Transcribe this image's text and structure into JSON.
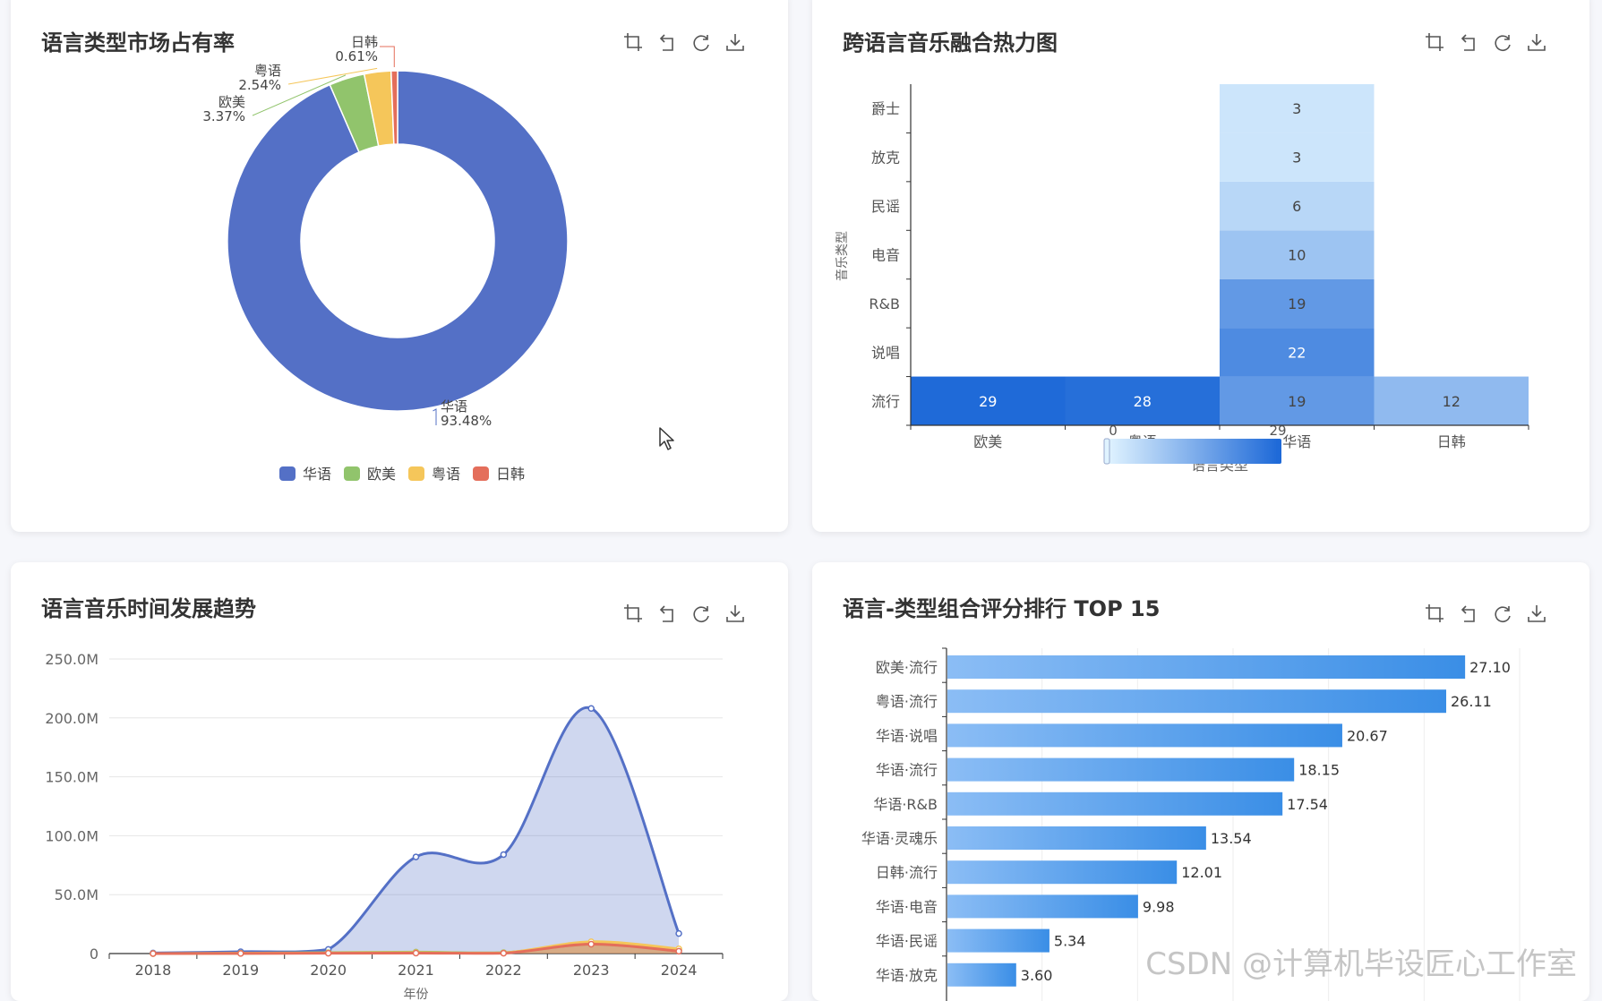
{
  "colors": {
    "zh": "#5470c6",
    "en": "#91c46c",
    "yue": "#f5c65a",
    "jk": "#e46e5b",
    "heat_low": "#e0f3ff",
    "heat_high": "#1f6ad8",
    "bar": "#3a8ee6"
  },
  "toolbox_icons": [
    "crop-icon",
    "undo-icon",
    "refresh-icon",
    "download-icon"
  ],
  "pie": {
    "title": "语言类型市场占有率",
    "chart_data": {
      "type": "pie",
      "donut": true,
      "slices": [
        {
          "name": "华语",
          "value": 93.48,
          "label": "93.48%"
        },
        {
          "name": "欧美",
          "value": 3.37,
          "label": "3.37%"
        },
        {
          "name": "粤语",
          "value": 2.54,
          "label": "2.54%"
        },
        {
          "name": "日韩",
          "value": 0.61,
          "label": "0.61%"
        }
      ],
      "legend": [
        "华语",
        "欧美",
        "粤语",
        "日韩"
      ],
      "legend_position": "bottom-center"
    }
  },
  "heatmap": {
    "title": "跨语言音乐融合热力图",
    "chart_data": {
      "type": "heatmap",
      "xlabel": "语言类型",
      "ylabel": "音乐类型",
      "x": [
        "欧美",
        "粤语",
        "华语",
        "日韩"
      ],
      "y": [
        "流行",
        "说唱",
        "R&B",
        "电音",
        "民谣",
        "放克",
        "爵士"
      ],
      "cells": [
        {
          "x": "欧美",
          "y": "流行",
          "v": 29
        },
        {
          "x": "粤语",
          "y": "流行",
          "v": 28
        },
        {
          "x": "华语",
          "y": "流行",
          "v": 19
        },
        {
          "x": "日韩",
          "y": "流行",
          "v": 12
        },
        {
          "x": "华语",
          "y": "说唱",
          "v": 22
        },
        {
          "x": "华语",
          "y": "R&B",
          "v": 19
        },
        {
          "x": "华语",
          "y": "电音",
          "v": 10
        },
        {
          "x": "华语",
          "y": "民谣",
          "v": 6
        },
        {
          "x": "华语",
          "y": "放克",
          "v": 3
        },
        {
          "x": "华语",
          "y": "爵士",
          "v": 3
        }
      ],
      "visual_map": {
        "min": 0,
        "max": 29,
        "min_label": "0",
        "max_label": "29"
      }
    }
  },
  "line": {
    "title": "语言音乐时间发展趋势",
    "chart_data": {
      "type": "area",
      "x": [
        "2018",
        "2019",
        "2020",
        "2021",
        "2022",
        "2023",
        "2024"
      ],
      "xlabel": "年份",
      "ylim": [
        0,
        250
      ],
      "yticks": [
        "0",
        "50.0M",
        "100.0M",
        "150.0M",
        "200.0M",
        "250.0M"
      ],
      "series": [
        {
          "key": "zh",
          "values": [
            0.5,
            1.5,
            3.5,
            82,
            84,
            208,
            17
          ]
        },
        {
          "key": "en",
          "values": [
            0,
            0.3,
            0.8,
            1.2,
            0.8,
            8,
            3
          ]
        },
        {
          "key": "yue",
          "values": [
            0,
            0.2,
            0.5,
            0.8,
            0.5,
            10,
            4
          ]
        },
        {
          "key": "jk",
          "values": [
            0,
            0.1,
            0.3,
            0.4,
            0.3,
            8,
            2
          ]
        }
      ]
    }
  },
  "bars": {
    "title": "语言-类型组合评分排行 TOP 15",
    "chart_data": {
      "type": "bar",
      "orientation": "horizontal",
      "xlim": [
        0,
        30
      ],
      "categories": [
        "欧美·流行",
        "粤语·流行",
        "华语·说唱",
        "华语·流行",
        "华语·R&B",
        "华语·灵魂乐",
        "日韩·流行",
        "华语·电音",
        "华语·民谣",
        "华语·放克"
      ],
      "values": [
        27.1,
        26.11,
        20.67,
        18.15,
        17.54,
        13.54,
        12.01,
        9.98,
        5.34,
        3.6
      ],
      "value_labels": [
        "27.10",
        "26.11",
        "20.67",
        "18.15",
        "17.54",
        "13.54",
        "12.01",
        "9.98",
        "5.34",
        "3.60"
      ]
    }
  },
  "watermark": "CSDN @计算机毕设匠心工作室"
}
